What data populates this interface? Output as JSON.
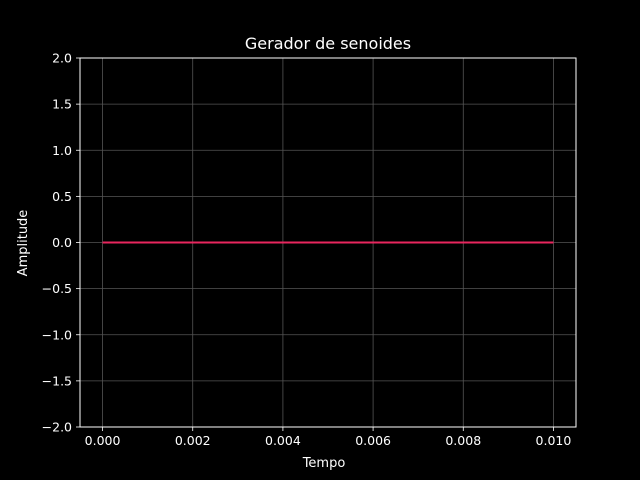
{
  "chart_data": {
    "type": "line",
    "title": "Gerador de senoides",
    "xlabel": "Tempo",
    "ylabel": "Amplitude",
    "xlim": [
      -0.0005,
      0.0105
    ],
    "ylim": [
      -2.0,
      2.0
    ],
    "xticks": [
      0.0,
      0.002,
      0.004,
      0.006,
      0.008,
      0.01
    ],
    "xtick_labels": [
      "0.000",
      "0.002",
      "0.004",
      "0.006",
      "0.008",
      "0.010"
    ],
    "yticks": [
      -2.0,
      -1.5,
      -1.0,
      -0.5,
      0.0,
      0.5,
      1.0,
      1.5,
      2.0
    ],
    "ytick_labels": [
      "−2.0",
      "−1.5",
      "−1.0",
      "−0.5",
      "0.0",
      "0.5",
      "1.0",
      "1.5",
      "2.0"
    ],
    "grid": true,
    "series": [
      {
        "color": "#e8265e",
        "x": [
          0.0,
          0.001,
          0.002,
          0.003,
          0.004,
          0.005,
          0.006,
          0.007,
          0.008,
          0.009,
          0.01
        ],
        "y": [
          0,
          0,
          0,
          0,
          0,
          0,
          0,
          0,
          0,
          0,
          0
        ]
      }
    ]
  },
  "colors": {
    "background": "#000000",
    "text": "#ffffff",
    "grid": "#555555",
    "line": "#e8265e"
  }
}
